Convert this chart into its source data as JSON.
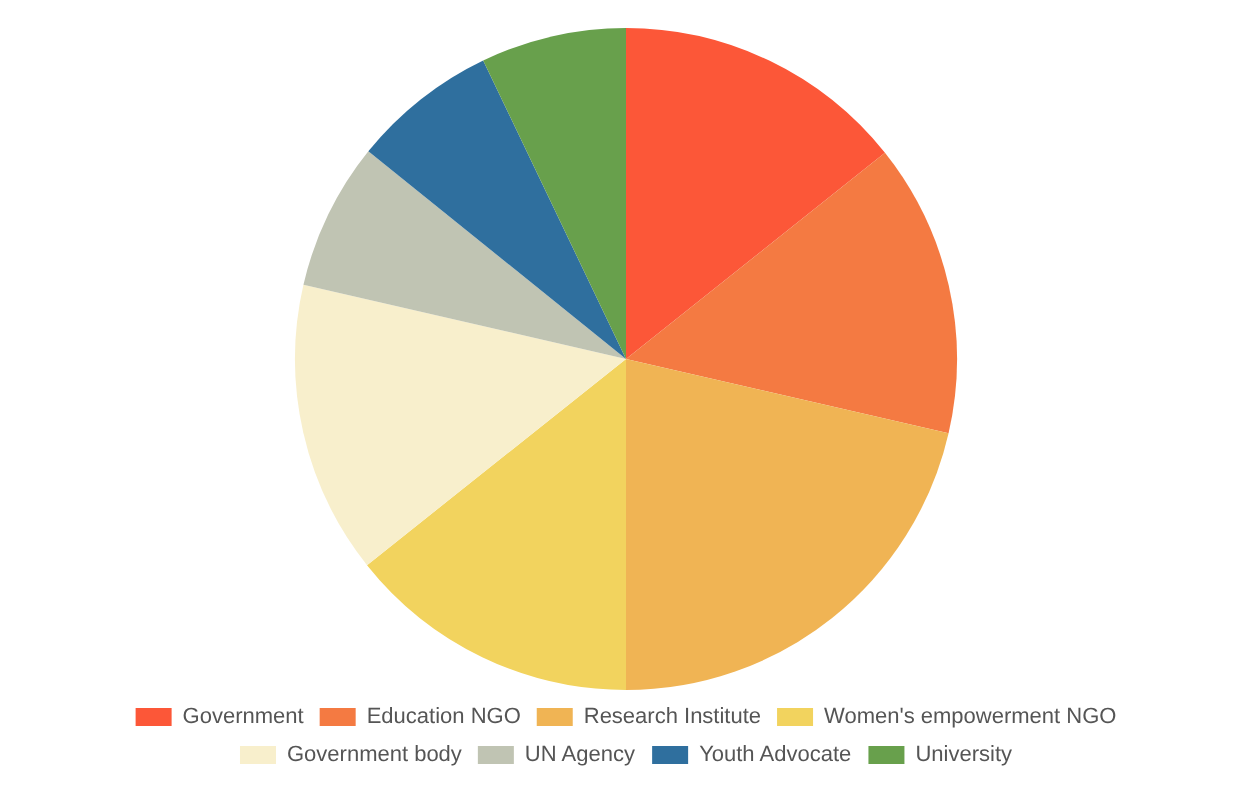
{
  "chart_data": {
    "type": "pie",
    "categories": [
      "Government",
      "Education NGO",
      "Research Institute",
      "Women's empowerment NGO",
      "Government body",
      "UN Agency",
      "Youth Advocate",
      "University"
    ],
    "values": [
      14.3,
      14.3,
      21.4,
      14.3,
      14.3,
      7.2,
      7.1,
      7.1
    ],
    "colors": [
      "#fc5738",
      "#f47a42",
      "#f0b454",
      "#f2d35e",
      "#f8efcc",
      "#c0c4b3",
      "#2f6f9e",
      "#68a04c"
    ],
    "legend": "bottom"
  }
}
